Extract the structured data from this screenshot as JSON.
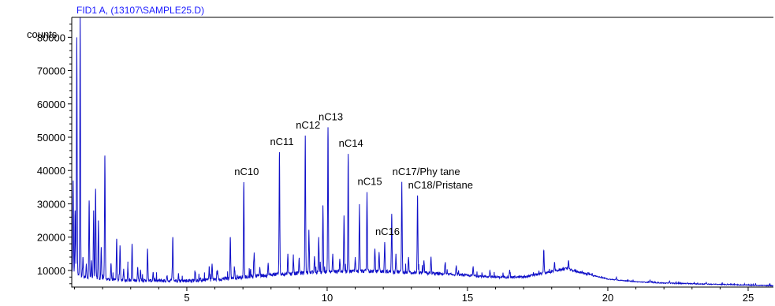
{
  "chart_data": {
    "type": "line",
    "title": "FID1 A,  (13107\\SAMPLE25.D)",
    "ylabel": "counts",
    "xlim": [
      0.9,
      25.9
    ],
    "ylim": [
      5000,
      86000
    ],
    "xticks": [
      5,
      10,
      15,
      20,
      25
    ],
    "yticks": [
      10000,
      20000,
      30000,
      40000,
      50000,
      60000,
      70000,
      80000
    ],
    "colors": {
      "trace": "#1010c8",
      "title": "#1a1aff",
      "axis": "#000000"
    },
    "baseline": [
      [
        0.9,
        9500
      ],
      [
        1.3,
        8000
      ],
      [
        2.0,
        7400
      ],
      [
        3.0,
        7000
      ],
      [
        4.0,
        6900
      ],
      [
        5.0,
        6900
      ],
      [
        6.0,
        7300
      ],
      [
        7.0,
        8000
      ],
      [
        8.0,
        8700
      ],
      [
        9.0,
        9200
      ],
      [
        10.0,
        9600
      ],
      [
        11.0,
        9800
      ],
      [
        12.0,
        9700
      ],
      [
        13.0,
        9400
      ],
      [
        14.0,
        9000
      ],
      [
        15.0,
        8500
      ],
      [
        16.0,
        8000
      ],
      [
        17.0,
        8000
      ],
      [
        17.8,
        9300
      ],
      [
        18.5,
        10500
      ],
      [
        19.0,
        9500
      ],
      [
        20.0,
        7400
      ],
      [
        21.0,
        6600
      ],
      [
        22.0,
        6200
      ],
      [
        23.0,
        6000
      ],
      [
        24.0,
        5800
      ],
      [
        25.0,
        5600
      ],
      [
        25.9,
        5400
      ]
    ],
    "peaks": [
      {
        "x": 0.95,
        "y": 37000
      },
      {
        "x": 1.02,
        "y": 28000
      },
      {
        "x": 1.08,
        "y": 80000
      },
      {
        "x": 1.2,
        "y": 86000
      },
      {
        "x": 1.3,
        "y": 14000
      },
      {
        "x": 1.42,
        "y": 12000
      },
      {
        "x": 1.52,
        "y": 31000
      },
      {
        "x": 1.6,
        "y": 13000
      },
      {
        "x": 1.68,
        "y": 28000
      },
      {
        "x": 1.75,
        "y": 34500
      },
      {
        "x": 1.85,
        "y": 25000
      },
      {
        "x": 1.95,
        "y": 17000
      },
      {
        "x": 2.08,
        "y": 44500
      },
      {
        "x": 2.3,
        "y": 12000
      },
      {
        "x": 2.5,
        "y": 19500
      },
      {
        "x": 2.62,
        "y": 17500
      },
      {
        "x": 2.75,
        "y": 10500
      },
      {
        "x": 2.9,
        "y": 11000
      },
      {
        "x": 3.05,
        "y": 18000
      },
      {
        "x": 3.25,
        "y": 11000
      },
      {
        "x": 3.35,
        "y": 10000
      },
      {
        "x": 3.6,
        "y": 16500
      },
      {
        "x": 3.8,
        "y": 9500
      },
      {
        "x": 4.3,
        "y": 8500
      },
      {
        "x": 4.5,
        "y": 20000
      },
      {
        "x": 4.7,
        "y": 9000
      },
      {
        "x": 5.3,
        "y": 9500
      },
      {
        "x": 5.5,
        "y": 7500
      },
      {
        "x": 5.8,
        "y": 11000
      },
      {
        "x": 5.9,
        "y": 12000
      },
      {
        "x": 6.1,
        "y": 9500
      },
      {
        "x": 6.55,
        "y": 20000
      },
      {
        "x": 6.7,
        "y": 10500
      },
      {
        "x": 7.03,
        "y": 36500
      },
      {
        "x": 7.4,
        "y": 15000
      },
      {
        "x": 7.6,
        "y": 11000
      },
      {
        "x": 7.9,
        "y": 12000
      },
      {
        "x": 8.3,
        "y": 45500
      },
      {
        "x": 8.6,
        "y": 15000
      },
      {
        "x": 8.8,
        "y": 13000
      },
      {
        "x": 9.0,
        "y": 13500
      },
      {
        "x": 9.22,
        "y": 50500
      },
      {
        "x": 9.35,
        "y": 22000
      },
      {
        "x": 9.55,
        "y": 14000
      },
      {
        "x": 9.7,
        "y": 20000
      },
      {
        "x": 9.85,
        "y": 29500
      },
      {
        "x": 10.03,
        "y": 53000
      },
      {
        "x": 10.2,
        "y": 15000
      },
      {
        "x": 10.45,
        "y": 13500
      },
      {
        "x": 10.6,
        "y": 26500
      },
      {
        "x": 10.75,
        "y": 45000
      },
      {
        "x": 11.0,
        "y": 14000
      },
      {
        "x": 11.15,
        "y": 29500
      },
      {
        "x": 11.42,
        "y": 33500
      },
      {
        "x": 11.7,
        "y": 16500
      },
      {
        "x": 11.85,
        "y": 15500
      },
      {
        "x": 12.05,
        "y": 18500
      },
      {
        "x": 12.3,
        "y": 27000
      },
      {
        "x": 12.45,
        "y": 15000
      },
      {
        "x": 12.66,
        "y": 36500
      },
      {
        "x": 12.9,
        "y": 14000
      },
      {
        "x": 13.22,
        "y": 32500
      },
      {
        "x": 13.45,
        "y": 13000
      },
      {
        "x": 13.7,
        "y": 14000
      },
      {
        "x": 14.2,
        "y": 12000
      },
      {
        "x": 14.6,
        "y": 11500
      },
      {
        "x": 15.2,
        "y": 11000
      },
      {
        "x": 15.8,
        "y": 10000
      },
      {
        "x": 16.5,
        "y": 10000
      },
      {
        "x": 17.72,
        "y": 16000
      },
      {
        "x": 18.1,
        "y": 12500
      },
      {
        "x": 18.6,
        "y": 13000
      },
      {
        "x": 19.3,
        "y": 9500
      },
      {
        "x": 20.3,
        "y": 7800
      },
      {
        "x": 21.5,
        "y": 7000
      },
      {
        "x": 22.2,
        "y": 6800
      },
      {
        "x": 23.5,
        "y": 6300
      }
    ],
    "annotations": [
      {
        "text": "nC10",
        "x": 7.03,
        "y": 36500
      },
      {
        "text": "nC11",
        "x": 8.3,
        "y": 45500
      },
      {
        "text": "nC12",
        "x": 9.22,
        "y": 50500
      },
      {
        "text": "nC13",
        "x": 10.03,
        "y": 53000
      },
      {
        "text": "nC14",
        "x": 10.75,
        "y": 45000
      },
      {
        "text": "nC15",
        "x": 11.42,
        "y": 33500
      },
      {
        "text": "nC16",
        "x": 12.05,
        "y": 18500
      },
      {
        "text": "nC17/Phy tane",
        "x": 12.66,
        "y": 36500
      },
      {
        "text": "nC18/Pristane",
        "x": 13.22,
        "y": 32500
      }
    ],
    "grid": false,
    "legend": "none"
  }
}
